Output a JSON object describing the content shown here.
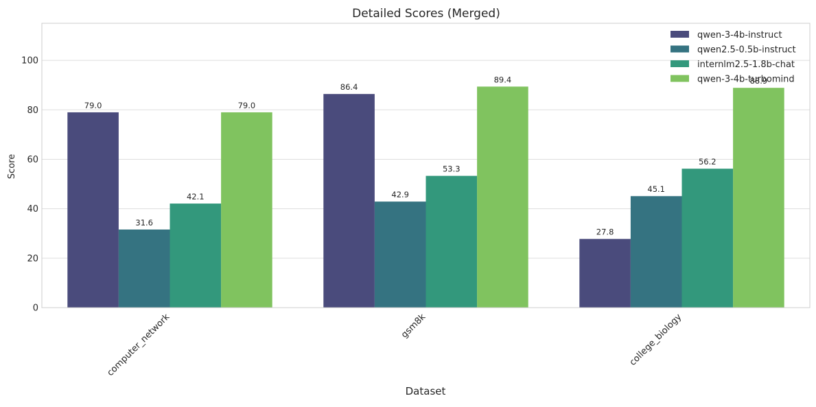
{
  "chart_data": {
    "type": "bar",
    "title": "Detailed Scores (Merged)",
    "xlabel": "Dataset",
    "ylabel": "Score",
    "ylim": [
      0,
      115
    ],
    "yticks": [
      0,
      20,
      40,
      60,
      80,
      100
    ],
    "grid": true,
    "legend_position": "top-right",
    "categories": [
      "computer_network",
      "gsm8k",
      "college_biology"
    ],
    "series": [
      {
        "name": "qwen-3-4b-instruct",
        "color": "#4a4b7c",
        "values": [
          79.0,
          86.4,
          27.8
        ]
      },
      {
        "name": "qwen2.5-0.5b-instruct",
        "color": "#357381",
        "values": [
          31.6,
          42.9,
          45.1
        ]
      },
      {
        "name": "internlm2.5-1.8b-chat",
        "color": "#33987c",
        "values": [
          42.1,
          53.3,
          56.2
        ]
      },
      {
        "name": "qwen-3-4b-turbomind",
        "color": "#80c35f",
        "values": [
          79.0,
          89.4,
          88.9
        ]
      }
    ]
  }
}
